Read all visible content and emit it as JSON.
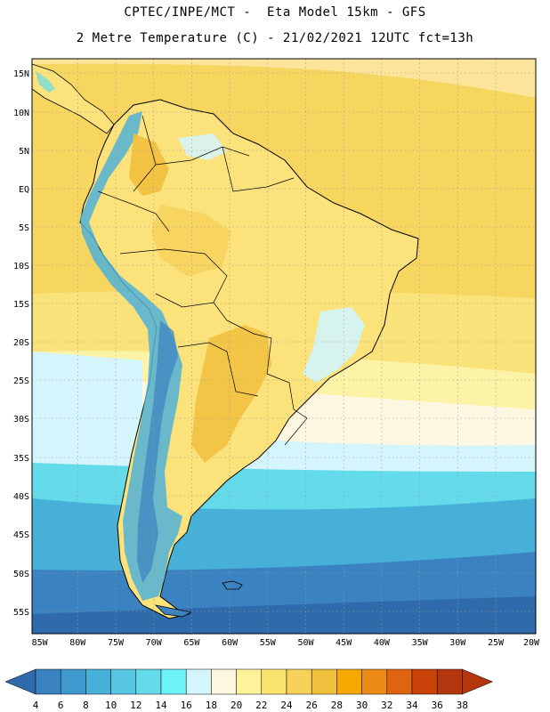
{
  "header": {
    "line1": "CPTEC/INPE/MCT -  Eta Model 15km - GFS",
    "line2": "2 Metre Temperature (C) - 21/02/2021 12UTC fct=13h"
  },
  "lat_labels": [
    "15N",
    "10N",
    "5N",
    "EQ",
    "5S",
    "10S",
    "15S",
    "20S",
    "25S",
    "30S",
    "35S",
    "40S",
    "45S",
    "50S",
    "55S"
  ],
  "lon_labels": [
    "85W",
    "80W",
    "75W",
    "70W",
    "65W",
    "60W",
    "55W",
    "50W",
    "45W",
    "40W",
    "35W",
    "30W",
    "25W",
    "20W"
  ],
  "colorbar": {
    "labels": [
      "4",
      "6",
      "8",
      "10",
      "12",
      "14",
      "16",
      "18",
      "20",
      "22",
      "24",
      "26",
      "28",
      "30",
      "32",
      "34",
      "36",
      "38"
    ],
    "colors": [
      "#2f6bab",
      "#3b82c0",
      "#3f99cf",
      "#46b0d9",
      "#58c5e2",
      "#63dbea",
      "#6bf3f7",
      "#d3f5fb",
      "#fdf6e0",
      "#fdf39a",
      "#fbe46e",
      "#f7d25a",
      "#f1c03d",
      "#f5a800",
      "#ec8a18",
      "#de6410",
      "#c9420a",
      "#b3360f"
    ]
  },
  "map": {
    "ocean_colors": {
      "tropical": "#f7d660",
      "warm": "#f9e27a",
      "light": "#fdf3a6",
      "cream": "#fdf6e0",
      "pale_cyan": "#d3f5fb",
      "cyan": "#63dbea",
      "mid_blue": "#46b0d9",
      "deep_blue": "#3b82c0"
    },
    "land_color": "#fbe27a",
    "andes_color": "#4fb2d9"
  }
}
